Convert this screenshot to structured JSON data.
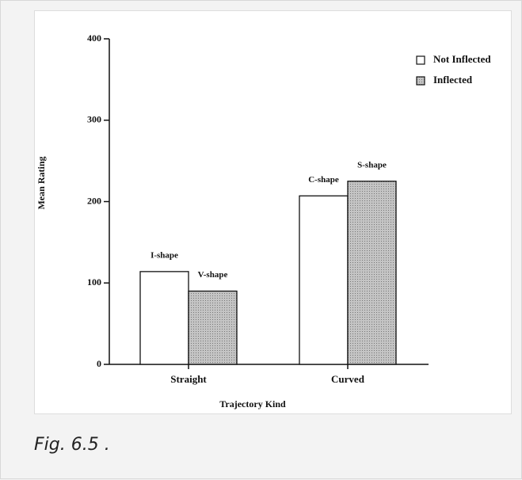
{
  "chart_data": {
    "type": "bar",
    "x_label": "Trajectory Kind",
    "y_label": "Mean Rating",
    "categories": [
      "Straight",
      "Curved"
    ],
    "series": [
      {
        "name": "Not Inflected",
        "color": "#ffffff",
        "values": [
          114,
          207
        ],
        "bar_labels": [
          "I-shape",
          "C-shape"
        ]
      },
      {
        "name": "Inflected",
        "color": "#b8b8b8",
        "values": [
          90,
          225
        ],
        "bar_labels": [
          "V-shape",
          "S-shape"
        ]
      }
    ],
    "ylim": [
      0,
      400
    ],
    "yticks": [
      0,
      100,
      200,
      300,
      400
    ],
    "legend": "top-right"
  },
  "caption": "Fig. 6.5 ."
}
